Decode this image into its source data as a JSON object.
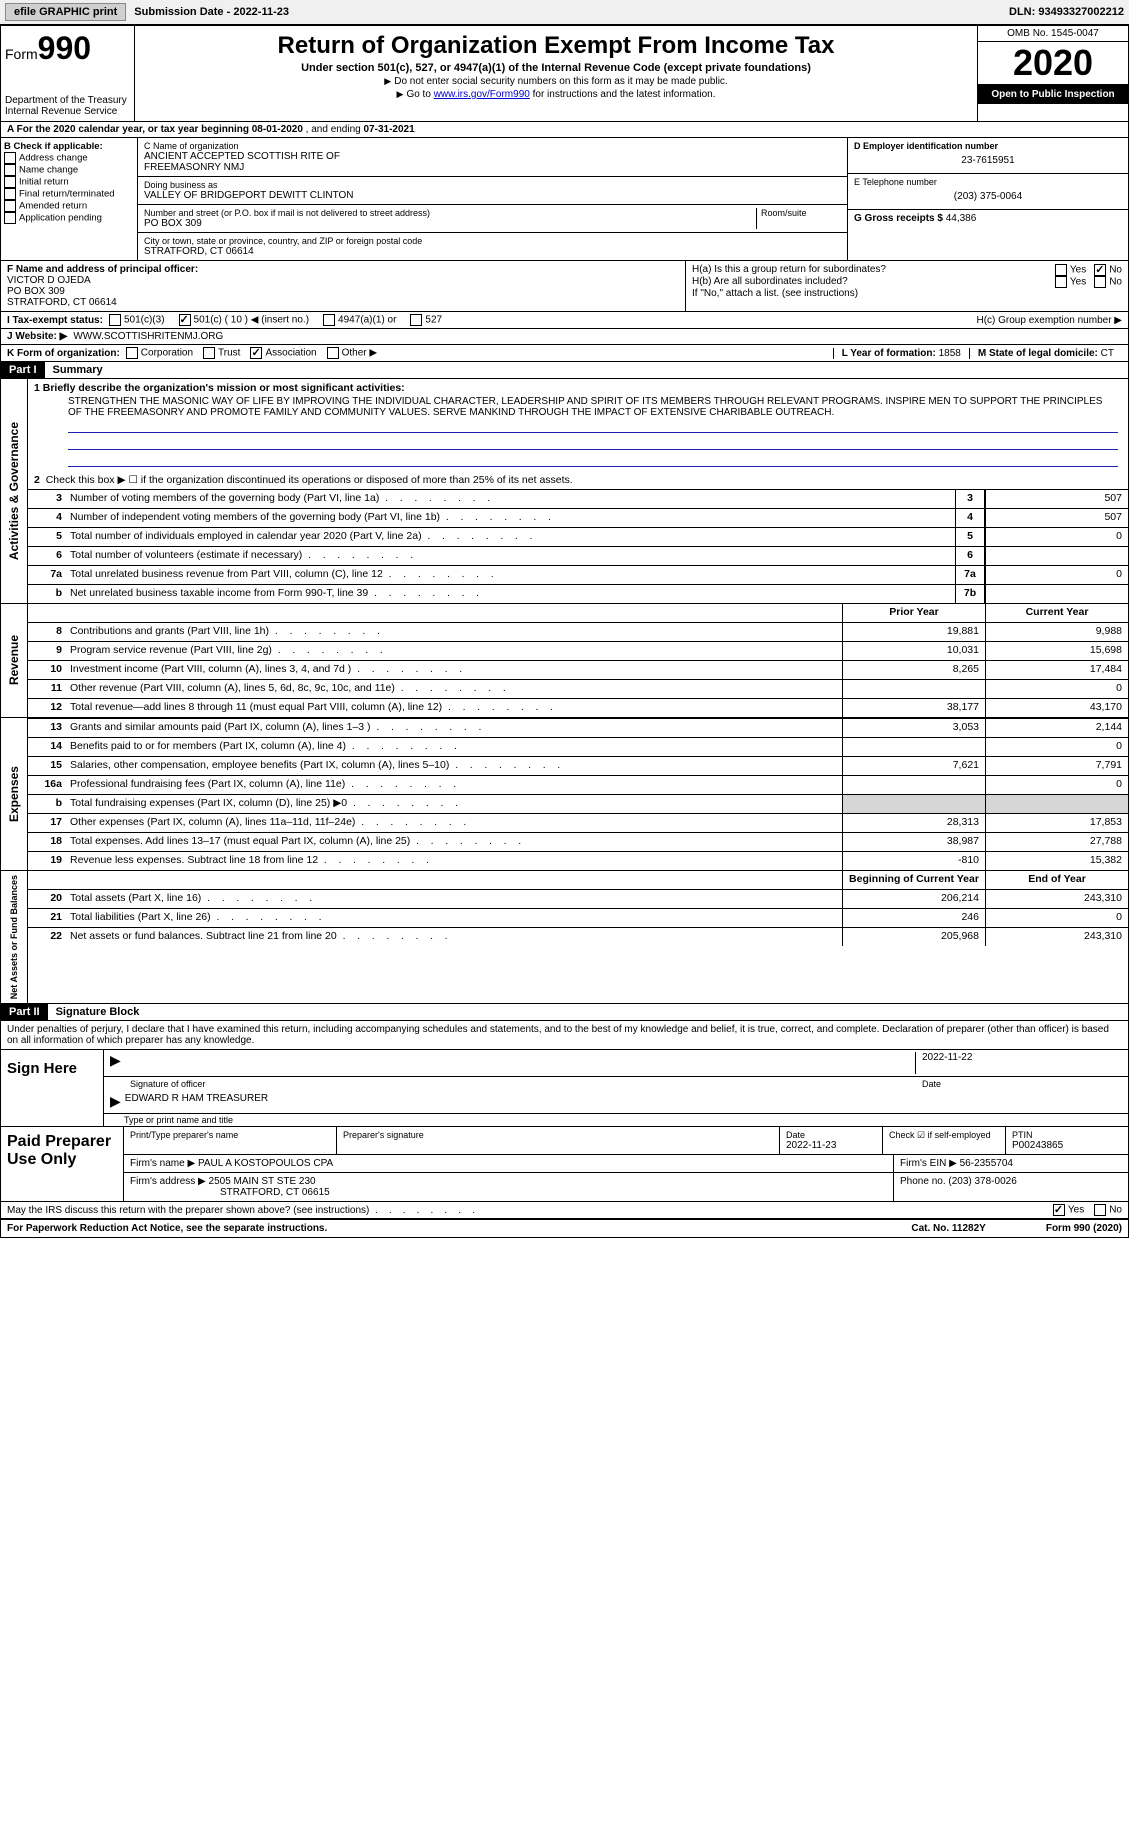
{
  "colors": {
    "black": "#000000",
    "white": "#ffffff",
    "link": "#0000cc",
    "shaded": "#d5d5d5",
    "rule_blue": "#2020b0"
  },
  "topbar": {
    "efile": "efile GRAPHIC print",
    "submission_label": "Submission Date - ",
    "submission_date": "2022-11-23",
    "dln_label": "DLN: ",
    "dln": "93493327002212"
  },
  "header": {
    "form_word": "Form",
    "form_num": "990",
    "dept1": "Department of the Treasury",
    "dept2": "Internal Revenue Service",
    "title": "Return of Organization Exempt From Income Tax",
    "subtitle": "Under section 501(c), 527, or 4947(a)(1) of the Internal Revenue Code (except private foundations)",
    "note1": "Do not enter social security numbers on this form as it may be made public.",
    "note2_pre": "Go to ",
    "note2_link": "www.irs.gov/Form990",
    "note2_post": " for instructions and the latest information.",
    "omb": "OMB No. 1545-0047",
    "year": "2020",
    "open": "Open to Public Inspection"
  },
  "rowA": {
    "text_pre": "A For the 2020 calendar year, or tax year beginning ",
    "begin": "08-01-2020",
    "mid": "    , and ending ",
    "end": "07-31-2021"
  },
  "sectionB": {
    "title": "B Check if applicable:",
    "items": [
      "Address change",
      "Name change",
      "Initial return",
      "Final return/terminated",
      "Amended return",
      "Application pending"
    ]
  },
  "sectionC": {
    "name_label": "C Name of organization",
    "name1": "ANCIENT ACCEPTED SCOTTISH RITE OF",
    "name2": "FREEMASONRY NMJ",
    "dba_label": "Doing business as",
    "dba": "VALLEY OF BRIDGEPORT DEWITT CLINTON",
    "street_label": "Number and street (or P.O. box if mail is not delivered to street address)",
    "room_label": "Room/suite",
    "street": "PO BOX 309",
    "city_label": "City or town, state or province, country, and ZIP or foreign postal code",
    "city": "STRATFORD, CT  06614"
  },
  "sectionD": {
    "ein_label": "D Employer identification number",
    "ein": "23-7615951",
    "phone_label": "E Telephone number",
    "phone": "(203) 375-0064",
    "gross_label": "G Gross receipts $ ",
    "gross": "44,386"
  },
  "sectionF": {
    "label": "F Name and address of principal officer:",
    "name": "VICTOR D OJEDA",
    "street": "PO BOX 309",
    "city": "STRATFORD, CT  06614"
  },
  "sectionH": {
    "ha_label": "H(a)  Is this a group return for subordinates?",
    "hb_label": "H(b)  Are all subordinates included?",
    "hb_note": "If \"No,\" attach a list. (see instructions)",
    "hc_label": "H(c)  Group exemption number ▶",
    "yes": "Yes",
    "no": "No"
  },
  "rowI": {
    "label": "I   Tax-exempt status:",
    "c3": "501(c)(3)",
    "c_pre": "501(c) ( ",
    "c_num": "10",
    "c_post": " ) ◀ (insert no.)",
    "a1": "4947(a)(1) or",
    "s527": "527"
  },
  "rowJ": {
    "label": "J   Website: ▶",
    "value": "WWW.SCOTTISHRITENMJ.ORG"
  },
  "rowK": {
    "label": "K Form of organization:",
    "opts": [
      "Corporation",
      "Trust",
      "Association",
      "Other ▶"
    ],
    "checked_idx": 2
  },
  "rowL": {
    "l_label": "L Year of formation: ",
    "l_val": "1858",
    "m_label": "M State of legal domicile: ",
    "m_val": "CT"
  },
  "part1": {
    "hdr": "Part I",
    "title": "Summary",
    "line1_label": "1  Briefly describe the organization's mission or most significant activities:",
    "mission": "STRENGTHEN THE MASONIC WAY OF LIFE BY IMPROVING THE INDIVIDUAL CHARACTER, LEADERSHIP AND SPIRIT OF ITS MEMBERS THROUGH RELEVANT PROGRAMS. INSPIRE MEN TO SUPPORT THE PRINCIPLES OF THE FREEMASONRY AND PROMOTE FAMILY AND COMMUNITY VALUES. SERVE MANKIND THROUGH THE IMPACT OF EXTENSIVE CHARIBABLE OUTREACH.",
    "line2": "Check this box ▶ ☐ if the organization discontinued its operations or disposed of more than 25% of its net assets.",
    "tabs": {
      "gov": "Activities & Governance",
      "rev": "Revenue",
      "exp": "Expenses",
      "net": "Net Assets or Fund Balances"
    },
    "col_hdr_prior": "Prior Year",
    "col_hdr_curr": "Current Year",
    "col_hdr_beg": "Beginning of Current Year",
    "col_hdr_end": "End of Year",
    "gov_lines": [
      {
        "n": "3",
        "d": "Number of voting members of the governing body (Part VI, line 1a)",
        "box": "3",
        "v": "507"
      },
      {
        "n": "4",
        "d": "Number of independent voting members of the governing body (Part VI, line 1b)",
        "box": "4",
        "v": "507"
      },
      {
        "n": "5",
        "d": "Total number of individuals employed in calendar year 2020 (Part V, line 2a)",
        "box": "5",
        "v": "0"
      },
      {
        "n": "6",
        "d": "Total number of volunteers (estimate if necessary)",
        "box": "6",
        "v": ""
      },
      {
        "n": "7a",
        "d": "Total unrelated business revenue from Part VIII, column (C), line 12",
        "box": "7a",
        "v": "0"
      },
      {
        "n": "b",
        "d": "Net unrelated business taxable income from Form 990-T, line 39",
        "box": "7b",
        "v": ""
      }
    ],
    "rev_lines": [
      {
        "n": "8",
        "d": "Contributions and grants (Part VIII, line 1h)",
        "p": "19,881",
        "c": "9,988"
      },
      {
        "n": "9",
        "d": "Program service revenue (Part VIII, line 2g)",
        "p": "10,031",
        "c": "15,698"
      },
      {
        "n": "10",
        "d": "Investment income (Part VIII, column (A), lines 3, 4, and 7d )",
        "p": "8,265",
        "c": "17,484"
      },
      {
        "n": "11",
        "d": "Other revenue (Part VIII, column (A), lines 5, 6d, 8c, 9c, 10c, and 11e)",
        "p": "",
        "c": "0"
      },
      {
        "n": "12",
        "d": "Total revenue—add lines 8 through 11 (must equal Part VIII, column (A), line 12)",
        "p": "38,177",
        "c": "43,170"
      }
    ],
    "exp_lines": [
      {
        "n": "13",
        "d": "Grants and similar amounts paid (Part IX, column (A), lines 1–3 )",
        "p": "3,053",
        "c": "2,144"
      },
      {
        "n": "14",
        "d": "Benefits paid to or for members (Part IX, column (A), line 4)",
        "p": "",
        "c": "0"
      },
      {
        "n": "15",
        "d": "Salaries, other compensation, employee benefits (Part IX, column (A), lines 5–10)",
        "p": "7,621",
        "c": "7,791"
      },
      {
        "n": "16a",
        "d": "Professional fundraising fees (Part IX, column (A), line 11e)",
        "p": "",
        "c": "0"
      },
      {
        "n": "b",
        "d": "Total fundraising expenses (Part IX, column (D), line 25) ▶0",
        "p": "__shaded__",
        "c": "__shaded__"
      },
      {
        "n": "17",
        "d": "Other expenses (Part IX, column (A), lines 11a–11d, 11f–24e)",
        "p": "28,313",
        "c": "17,853"
      },
      {
        "n": "18",
        "d": "Total expenses. Add lines 13–17 (must equal Part IX, column (A), line 25)",
        "p": "38,987",
        "c": "27,788"
      },
      {
        "n": "19",
        "d": "Revenue less expenses. Subtract line 18 from line 12",
        "p": "-810",
        "c": "15,382"
      }
    ],
    "net_lines": [
      {
        "n": "20",
        "d": "Total assets (Part X, line 16)",
        "p": "206,214",
        "c": "243,310"
      },
      {
        "n": "21",
        "d": "Total liabilities (Part X, line 26)",
        "p": "246",
        "c": "0"
      },
      {
        "n": "22",
        "d": "Net assets or fund balances. Subtract line 21 from line 20",
        "p": "205,968",
        "c": "243,310"
      }
    ]
  },
  "part2": {
    "hdr": "Part II",
    "title": "Signature Block",
    "penalty": "Under penalties of perjury, I declare that I have examined this return, including accompanying schedules and statements, and to the best of my knowledge and belief, it is true, correct, and complete. Declaration of preparer (other than officer) is based on all information of which preparer has any knowledge.",
    "sign_here": "Sign Here",
    "sig_officer": "Signature of officer",
    "sig_date": "2022-11-22",
    "date_lbl": "Date",
    "officer_name": "EDWARD R HAM TREASURER",
    "type_lbl": "Type or print name and title",
    "paid": "Paid Preparer Use Only",
    "prep_name_lbl": "Print/Type preparer's name",
    "prep_sig_lbl": "Preparer's signature",
    "prep_date_lbl": "Date",
    "prep_date": "2022-11-23",
    "check_lbl": "Check ☑ if self-employed",
    "ptin_lbl": "PTIN",
    "ptin": "P00243865",
    "firm_name_lbl": "Firm's name    ▶ ",
    "firm_name": "PAUL A KOSTOPOULOS CPA",
    "firm_ein_lbl": "Firm's EIN ▶ ",
    "firm_ein": "56-2355704",
    "firm_addr_lbl": "Firm's address ▶ ",
    "firm_addr1": "2505 MAIN ST STE 230",
    "firm_addr2": "STRATFORD, CT  06615",
    "firm_phone_lbl": "Phone no. ",
    "firm_phone": "(203) 378-0026",
    "discuss": "May the IRS discuss this return with the preparer shown above? (see instructions)",
    "yes": "Yes",
    "no": "No"
  },
  "footer": {
    "pra": "For Paperwork Reduction Act Notice, see the separate instructions.",
    "cat": "Cat. No. 11282Y",
    "form": "Form 990 (2020)"
  }
}
